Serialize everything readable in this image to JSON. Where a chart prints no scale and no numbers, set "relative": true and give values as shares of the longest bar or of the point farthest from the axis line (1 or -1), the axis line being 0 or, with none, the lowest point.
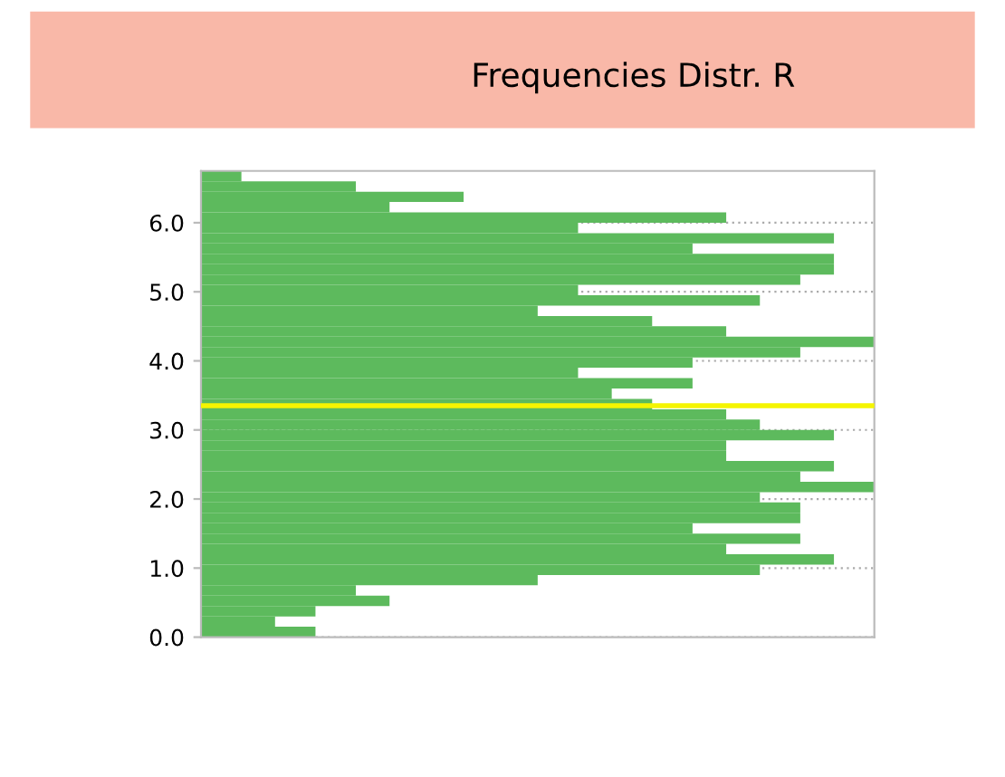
{
  "chart_data": {
    "type": "bar",
    "orientation": "horizontal",
    "relative": true,
    "title": "Frequencies Distr. R",
    "x": [
      0.075,
      0.225,
      0.375,
      0.525,
      0.675,
      0.825,
      0.975,
      1.125,
      1.275,
      1.425,
      1.575,
      1.725,
      1.875,
      2.025,
      2.175,
      2.325,
      2.475,
      2.625,
      2.775,
      2.925,
      3.075,
      3.225,
      3.375,
      3.525,
      3.675,
      3.825,
      3.975,
      4.125,
      4.275,
      4.425,
      4.575,
      4.725,
      4.875,
      5.025,
      5.175,
      5.325,
      5.475,
      5.625,
      5.775,
      5.925,
      6.075,
      6.225,
      6.375,
      6.525,
      6.675
    ],
    "values": [
      0.17,
      0.11,
      0.17,
      0.28,
      0.23,
      0.5,
      0.83,
      0.94,
      0.78,
      0.89,
      0.73,
      0.89,
      0.89,
      0.83,
      1.0,
      0.89,
      0.94,
      0.78,
      0.78,
      0.94,
      0.83,
      0.78,
      0.67,
      0.61,
      0.73,
      0.56,
      0.73,
      0.89,
      1.0,
      0.78,
      0.67,
      0.5,
      0.83,
      0.56,
      0.89,
      0.94,
      0.94,
      0.73,
      0.94,
      0.56,
      0.78,
      0.28,
      0.39,
      0.23,
      0.06
    ],
    "color": "#5dba5d",
    "ylim": [
      0,
      6.75
    ],
    "yticks": [
      {
        "value": 0,
        "label": "0.0"
      },
      {
        "value": 1,
        "label": "1.0"
      },
      {
        "value": 2,
        "label": "2.0"
      },
      {
        "value": 3,
        "label": "3.0"
      },
      {
        "value": 4,
        "label": "4.0"
      },
      {
        "value": 5,
        "label": "5.0"
      },
      {
        "value": 6,
        "label": "6.0"
      }
    ],
    "tick_labels": "y",
    "grid": "y",
    "ref_lines": [
      {
        "axis": "y",
        "value": 3.35,
        "color": "#f5f500"
      }
    ]
  }
}
